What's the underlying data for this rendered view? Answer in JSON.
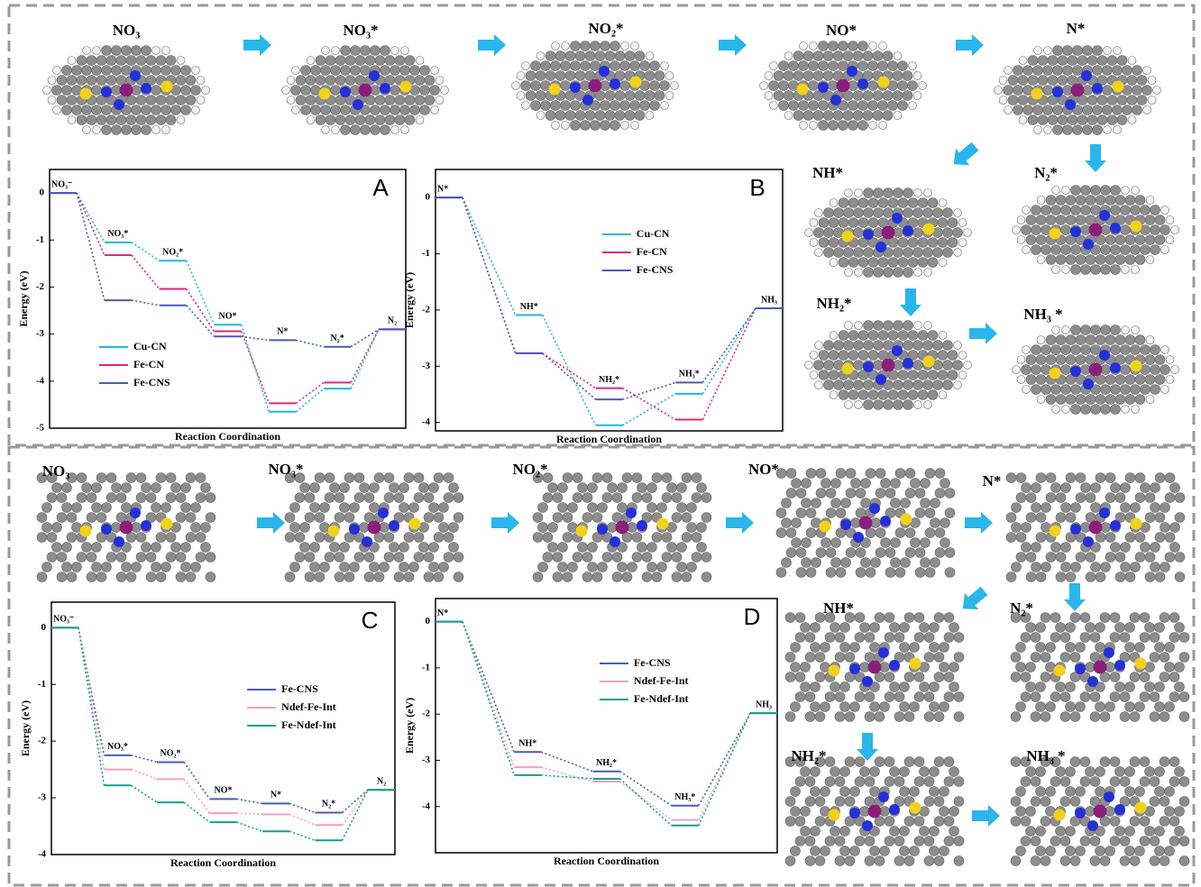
{
  "structure_labels": {
    "top": [
      "NO₃",
      "NO₃*",
      "NO₂*",
      "NO*",
      "N*",
      "NH*",
      "N₂*",
      "NH₂*",
      "NH₃ *"
    ],
    "bottom": [
      "NO₃",
      "NO₃*",
      "NO₂*",
      "NO*",
      "N*",
      "NH*",
      "N₂*",
      "NH₂*",
      "NH₃ *"
    ]
  },
  "chart_data": [
    {
      "type": "step",
      "panel": "A",
      "x_label": "Reaction Coordination",
      "y_label": "Energy (eV)",
      "categories": [
        "NO₃⁻",
        "NO₃*",
        "NO₂*",
        "NO*",
        "N*",
        "N₂*",
        "N₂"
      ],
      "series": [
        {
          "name": "Cu-CN",
          "color": "#1fb8e0",
          "values": [
            0,
            -1.05,
            -1.44,
            -2.8,
            -4.65,
            -4.16,
            -2.9
          ]
        },
        {
          "name": "Fe-CN",
          "color": "#e0267a",
          "values": [
            0,
            -1.32,
            -2.04,
            -2.94,
            -4.47,
            -4.03,
            -2.9
          ]
        },
        {
          "name": "Fe-CNS",
          "color": "#4a5bb5",
          "values": [
            0,
            -2.28,
            -2.39,
            -3.05,
            -3.13,
            -3.27,
            -2.9
          ]
        }
      ],
      "ylim": [
        -5,
        0.5
      ],
      "yticks": [
        0,
        -1,
        -2,
        -3,
        -4,
        -5
      ],
      "legend": "lower left"
    },
    {
      "type": "step",
      "panel": "B",
      "x_label": "Reaction Coordination",
      "y_label": "Energy (eV)",
      "categories": [
        "N*",
        "NH*",
        "NH₂*",
        "NH₃*",
        "NH₃"
      ],
      "series": [
        {
          "name": "Cu-CN",
          "color": "#1fb8e0",
          "values": [
            0,
            -2.09,
            -4.05,
            -3.49,
            -1.97
          ]
        },
        {
          "name": "Fe-CN",
          "color": "#e0267a",
          "values": [
            0,
            -2.77,
            -3.39,
            -3.95,
            -1.97
          ]
        },
        {
          "name": "Fe-CNS",
          "color": "#4a5bb5",
          "values": [
            0,
            -2.77,
            -3.59,
            -3.29,
            -1.97
          ]
        }
      ],
      "ylim": [
        -4.15,
        0.5
      ],
      "yticks": [
        0,
        -1,
        -2,
        -3,
        -4
      ],
      "legend": "upper center"
    },
    {
      "type": "step",
      "panel": "C",
      "x_label": "Reaction Coordination",
      "y_label": "Energy (eV)",
      "categories": [
        "NO₃⁻",
        "NO₃*",
        "NO₂*",
        "NO*",
        "N*",
        "N₂*",
        "N₂"
      ],
      "series": [
        {
          "name": "Fe-CNS",
          "color": "#4a5bb5",
          "values": [
            0,
            -2.25,
            -2.37,
            -3.02,
            -3.1,
            -3.26,
            -2.86
          ]
        },
        {
          "name": "Ndef-Fe-Int",
          "color": "#f4a0b8",
          "values": [
            0,
            -2.5,
            -2.67,
            -3.27,
            -3.29,
            -3.48,
            -2.86
          ]
        },
        {
          "name": "Fe-Ndef-Int",
          "color": "#12a08f",
          "values": [
            0,
            -2.78,
            -3.08,
            -3.43,
            -3.59,
            -3.75,
            -2.86
          ]
        }
      ],
      "ylim": [
        -4,
        0.45
      ],
      "yticks": [
        0,
        -1,
        -2,
        -3,
        -4
      ],
      "legend": "center right"
    },
    {
      "type": "step",
      "panel": "D",
      "x_label": "Reaction Coordination",
      "y_label": "Energy (eV)",
      "categories": [
        "N*",
        "NH*",
        "NH₂*",
        "NH₃*",
        "NH₃"
      ],
      "series": [
        {
          "name": "Fe-CNS",
          "color": "#4a5bb5",
          "values": [
            0,
            -2.82,
            -3.24,
            -3.98,
            -1.98
          ]
        },
        {
          "name": "Ndef-Fe-Int",
          "color": "#f4a0b8",
          "values": [
            0,
            -3.15,
            -3.46,
            -4.29,
            -1.98
          ]
        },
        {
          "name": "Fe-Ndef-Int",
          "color": "#12a08f",
          "values": [
            0,
            -3.32,
            -3.4,
            -4.41,
            -1.98
          ]
        }
      ],
      "ylim": [
        -5,
        0.5
      ],
      "yticks": [
        0,
        -1,
        -2,
        -3,
        -4
      ],
      "legend": "upper center"
    }
  ]
}
